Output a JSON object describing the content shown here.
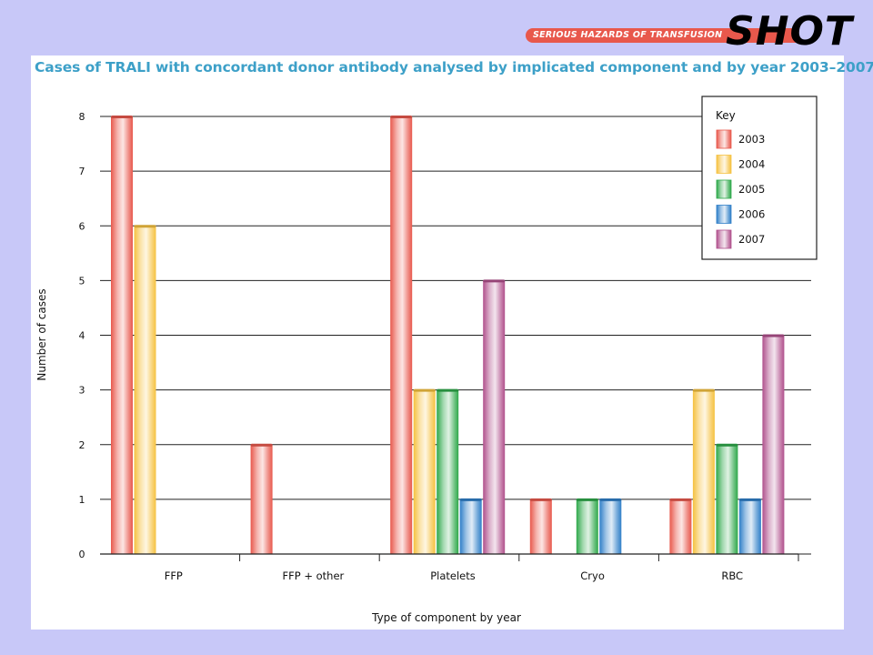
{
  "header": {
    "logo_tagline": "SERIOUS HAZARDS OF TRANSFUSION",
    "logo_text": "SHOT",
    "logo_colors": {
      "bar": "#e8584c",
      "text": "#000000"
    }
  },
  "background_color": "#c8c8f8",
  "chart_data": {
    "type": "bar",
    "title": "Cases of TRALI with concordant donor antibody analysed by implicated component and by year 2003–2007",
    "xlabel": "Type of component by year",
    "ylabel": "Number of cases",
    "ylim": [
      0,
      8
    ],
    "yticks": [
      0,
      1,
      2,
      3,
      4,
      5,
      6,
      7,
      8
    ],
    "grid": true,
    "legend_title": "Key",
    "legend_position": "top-right",
    "categories": [
      "FFP",
      "FFP + other",
      "Platelets",
      "Cryo",
      "RBC"
    ],
    "series": [
      {
        "name": "2003",
        "color": "#e8584c",
        "values": [
          8,
          2,
          8,
          1,
          1
        ]
      },
      {
        "name": "2004",
        "color": "#f5c140",
        "values": [
          6,
          0,
          3,
          0,
          3
        ]
      },
      {
        "name": "2005",
        "color": "#2ea84a",
        "values": [
          0,
          0,
          3,
          1,
          2
        ]
      },
      {
        "name": "2006",
        "color": "#2f7fc8",
        "values": [
          0,
          0,
          1,
          1,
          1
        ]
      },
      {
        "name": "2007",
        "color": "#b0508c",
        "values": [
          0,
          0,
          5,
          0,
          4
        ]
      }
    ]
  }
}
